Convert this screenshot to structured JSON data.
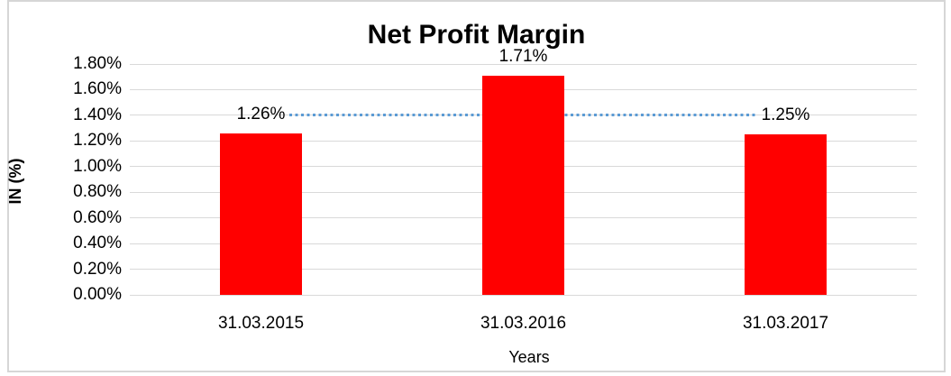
{
  "chart_data": {
    "type": "bar",
    "title": "Net Profit Margin",
    "xlabel": "Years",
    "ylabel": "IN (%)",
    "categories": [
      "31.03.2015",
      "31.03.2016",
      "31.03.2017"
    ],
    "values": [
      1.26,
      1.71,
      1.25
    ],
    "data_labels": [
      "1.26%",
      "1.71%",
      "1.25%"
    ],
    "yticks": [
      "1.80%",
      "1.60%",
      "1.40%",
      "1.20%",
      "1.00%",
      "0.80%",
      "0.60%",
      "0.40%",
      "0.20%",
      "0.00%"
    ],
    "ylim": [
      0,
      1.8
    ],
    "grid": true,
    "legend": false,
    "bar_color": "#ff0000",
    "gridline_color": "#d9d9d9",
    "frame_border_color": "#d6d6d6",
    "text_color": "#000000",
    "annotation": {
      "type": "dotted-line",
      "value": 1.4,
      "color": "#5b9bd5"
    }
  }
}
